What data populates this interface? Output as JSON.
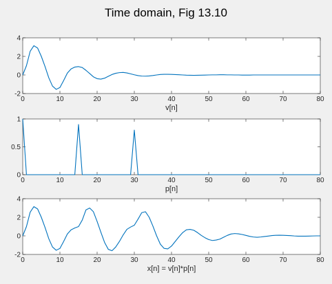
{
  "figure": {
    "title": "Time domain, Fig 13.10",
    "background": "#f0f0f0",
    "line_color": "#0072bd"
  },
  "chart_data": [
    {
      "type": "line",
      "title": "",
      "xlabel": "v[n]",
      "ylabel": "",
      "xlim": [
        0,
        80
      ],
      "ylim": [
        -2,
        4
      ],
      "xticks": [
        0,
        10,
        20,
        30,
        40,
        50,
        60,
        70,
        80
      ],
      "yticks": [
        -2,
        0,
        2,
        4
      ],
      "ytick_labels": [
        "-2",
        "0",
        "2",
        "4"
      ],
      "grid": false,
      "series": [
        {
          "x": [
            0,
            1,
            2,
            3,
            4,
            5,
            6,
            7,
            8,
            9,
            10,
            11,
            12,
            13,
            14,
            15,
            16,
            17,
            18,
            19,
            20,
            21,
            22,
            23,
            24,
            25,
            26,
            27,
            28,
            29,
            30,
            31,
            32,
            33,
            34,
            35,
            36,
            37,
            38,
            39,
            40,
            41,
            42,
            43,
            44,
            45,
            46,
            47,
            48,
            49,
            50,
            51,
            52,
            53,
            54,
            55,
            56,
            57,
            58,
            59,
            60,
            61,
            62,
            63,
            64,
            65,
            66,
            67,
            68,
            69,
            70,
            71,
            72,
            73,
            74,
            75,
            76,
            77,
            78,
            79,
            80
          ],
          "y": [
            0.0,
            1.0,
            2.55,
            3.15,
            2.9,
            2.0,
            0.9,
            -0.3,
            -1.2,
            -1.55,
            -1.35,
            -0.6,
            0.2,
            0.65,
            0.85,
            0.9,
            0.8,
            0.5,
            0.15,
            -0.2,
            -0.4,
            -0.45,
            -0.35,
            -0.15,
            0.05,
            0.18,
            0.25,
            0.27,
            0.22,
            0.12,
            0.02,
            -0.07,
            -0.12,
            -0.13,
            -0.11,
            -0.06,
            0.0,
            0.05,
            0.07,
            0.07,
            0.06,
            0.04,
            0.02,
            0.0,
            -0.02,
            -0.03,
            -0.04,
            -0.03,
            -0.02,
            -0.01,
            0.0,
            0.01,
            0.01,
            0.02,
            0.02,
            0.01,
            0.01,
            0.0,
            0.0,
            -0.01,
            -0.01,
            -0.01,
            0.0,
            0.0,
            0.0,
            0.0,
            0.0,
            0.0,
            0.0,
            0.0,
            0.0,
            0.0,
            0.0,
            0.0,
            0.0,
            0.0,
            0.0,
            0.0,
            0.0,
            0.0,
            0.0
          ]
        }
      ]
    },
    {
      "type": "line",
      "title": "",
      "xlabel": "p[n]",
      "ylabel": "",
      "xlim": [
        0,
        80
      ],
      "ylim": [
        0,
        1
      ],
      "xticks": [
        0,
        10,
        20,
        30,
        40,
        50,
        60,
        70,
        80
      ],
      "yticks": [
        0,
        0.5,
        1
      ],
      "ytick_labels": [
        "0",
        "0.5",
        "1"
      ],
      "grid": false,
      "series": [
        {
          "x": [
            0,
            1,
            2,
            14,
            15,
            16,
            17,
            29,
            30,
            31,
            32,
            80
          ],
          "y": [
            1,
            0,
            0,
            0,
            0.9,
            0,
            0,
            0,
            0.8,
            0,
            0,
            0
          ]
        }
      ]
    },
    {
      "type": "line",
      "title": "",
      "xlabel": "x[n] = v[n]*p[n]",
      "ylabel": "",
      "xlim": [
        0,
        80
      ],
      "ylim": [
        -2,
        4
      ],
      "xticks": [
        0,
        10,
        20,
        30,
        40,
        50,
        60,
        70,
        80
      ],
      "yticks": [
        -2,
        0,
        2,
        4
      ],
      "ytick_labels": [
        "-2",
        "0",
        "2",
        "4"
      ],
      "grid": false,
      "series": [
        {
          "x": [
            0,
            1,
            2,
            3,
            4,
            5,
            6,
            7,
            8,
            9,
            10,
            11,
            12,
            13,
            14,
            15,
            16,
            17,
            18,
            19,
            20,
            21,
            22,
            23,
            24,
            25,
            26,
            27,
            28,
            29,
            30,
            31,
            32,
            33,
            34,
            35,
            36,
            37,
            38,
            39,
            40,
            41,
            42,
            43,
            44,
            45,
            46,
            47,
            48,
            49,
            50,
            51,
            52,
            53,
            54,
            55,
            56,
            57,
            58,
            59,
            60,
            61,
            62,
            63,
            64,
            65,
            66,
            67,
            68,
            69,
            70,
            71,
            72,
            73,
            74,
            75,
            76,
            77,
            78,
            79,
            80
          ],
          "y": [
            0.0,
            1.0,
            2.55,
            3.15,
            2.9,
            2.0,
            0.9,
            -0.3,
            -1.2,
            -1.55,
            -1.35,
            -0.6,
            0.2,
            0.65,
            0.85,
            1.0,
            1.7,
            2.8,
            3.0,
            2.6,
            1.55,
            0.4,
            -0.7,
            -1.45,
            -1.6,
            -1.2,
            -0.6,
            0.1,
            0.7,
            0.95,
            1.15,
            1.8,
            2.5,
            2.6,
            2.0,
            1.05,
            0.0,
            -0.9,
            -1.35,
            -1.4,
            -1.1,
            -0.6,
            -0.1,
            0.35,
            0.65,
            0.7,
            0.6,
            0.35,
            0.05,
            -0.2,
            -0.4,
            -0.5,
            -0.45,
            -0.35,
            -0.15,
            0.05,
            0.2,
            0.25,
            0.22,
            0.15,
            0.05,
            -0.05,
            -0.12,
            -0.15,
            -0.12,
            -0.07,
            -0.02,
            0.03,
            0.06,
            0.07,
            0.06,
            0.04,
            0.02,
            -0.01,
            -0.03,
            -0.03,
            -0.03,
            -0.02,
            -0.01,
            0.0,
            0.0
          ]
        }
      ]
    }
  ]
}
